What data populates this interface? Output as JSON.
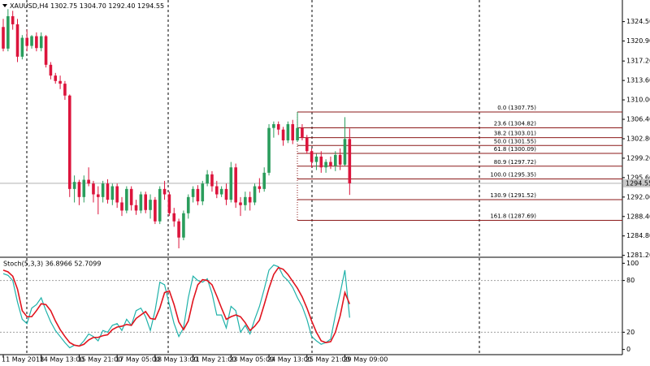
{
  "chart_data": [
    {
      "type": "candlestick",
      "title": "XAUUSD,H4",
      "header_values": [
        "1302.75",
        "1304.70",
        "1292.40",
        "1294.55"
      ],
      "categories": [
        "11 May 2018",
        null,
        null,
        null,
        null,
        null,
        null,
        null,
        "14 May 13:00",
        null,
        null,
        null,
        null,
        null,
        null,
        null,
        "15 May 21:00",
        null,
        null,
        null,
        null,
        null,
        null,
        null,
        "17 May 05:00",
        null,
        null,
        null,
        null,
        null,
        null,
        null,
        "18 May 13:00",
        null,
        null,
        null,
        null,
        null,
        null,
        null,
        "21 May 21:00",
        null,
        null,
        null,
        null,
        null,
        null,
        null,
        "23 May 05:00",
        null,
        null,
        null,
        null,
        null,
        null,
        null,
        "24 May 13:00",
        null,
        null,
        null,
        null,
        null,
        null,
        null,
        "25 May 21:00",
        null,
        null,
        null,
        null,
        null,
        null,
        null,
        "29 May 09:00",
        null
      ],
      "open": [
        1323.5,
        1319.5,
        1325.5,
        1324,
        1318,
        1321.5,
        1320,
        1321.8,
        1319.6,
        1321.8,
        1316.5,
        1314.5,
        1313.5,
        1313,
        1310.8,
        1293.5,
        1294.8,
        1292,
        1295.2,
        1294.5,
        1292.5,
        1292,
        1294.5,
        1291.5,
        1294,
        1291,
        1289.5,
        1293.5,
        1290.5,
        1289.5,
        1292.5,
        1289.6,
        1291.5,
        1287.5,
        1293.5,
        1292.5,
        1289,
        1287.5,
        1284.5,
        1289,
        1292,
        1293.5,
        1291.2,
        1294.5,
        1296.2,
        1294,
        1292.5,
        1293.5,
        1291.5,
        1297.5,
        1291,
        1290.5,
        1292,
        1291,
        1294,
        1293.5,
        1296.5,
        1304.8,
        1305.5,
        1304.5,
        1302.5,
        1305.5,
        1302.5,
        1304.8,
        1303,
        1300.5,
        1298.5,
        1299.5,
        1297.5,
        1298.5,
        1297.8,
        1299.8,
        1298,
        1302.75
      ],
      "high": [
        1325,
        1326.8,
        1326.5,
        1325,
        1322,
        1323,
        1322,
        1322.5,
        1322.5,
        1322,
        1317,
        1315,
        1314.5,
        1313.5,
        1311,
        1296,
        1295.2,
        1296,
        1297.5,
        1295,
        1294,
        1295,
        1295.3,
        1294.5,
        1294.5,
        1292,
        1294,
        1294,
        1291.5,
        1293,
        1293,
        1292.5,
        1292,
        1294,
        1295,
        1293,
        1290,
        1288,
        1289.5,
        1292.5,
        1294,
        1294.2,
        1295,
        1297,
        1296.8,
        1295,
        1294,
        1294.5,
        1298.5,
        1298.2,
        1292,
        1293,
        1293,
        1294.5,
        1295.5,
        1297.5,
        1305.5,
        1306,
        1306,
        1305,
        1306,
        1306.3,
        1307.75,
        1305.5,
        1303.5,
        1301,
        1300,
        1300.5,
        1299,
        1299.5,
        1300.5,
        1301,
        1306.8,
        1304.7
      ],
      "low": [
        1319,
        1319,
        1323,
        1317,
        1317.5,
        1319,
        1319.5,
        1319,
        1319,
        1316,
        1313.8,
        1313,
        1312,
        1310,
        1292,
        1291,
        1290.5,
        1291,
        1294,
        1291,
        1288.8,
        1291,
        1290.8,
        1290.5,
        1290,
        1288.5,
        1289,
        1289.5,
        1288.7,
        1289,
        1289,
        1288,
        1287,
        1287,
        1291.5,
        1288.5,
        1286.5,
        1282.5,
        1284,
        1288,
        1291,
        1290.5,
        1290.5,
        1294,
        1293,
        1291.8,
        1292,
        1290.5,
        1291,
        1290,
        1288.5,
        1289.5,
        1289.5,
        1290.5,
        1292.8,
        1293,
        1296,
        1303,
        1303.5,
        1301.5,
        1302,
        1301.8,
        1302.2,
        1302.5,
        1300,
        1297.5,
        1297,
        1296.5,
        1296.5,
        1297.2,
        1296.8,
        1297,
        1297.8,
        1292.4
      ],
      "close": [
        1319.5,
        1325.5,
        1324,
        1318,
        1321.5,
        1320,
        1321.8,
        1319.6,
        1321.8,
        1316.5,
        1314.5,
        1313.5,
        1313,
        1310.8,
        1293.5,
        1294.8,
        1292,
        1295.2,
        1294.5,
        1292.5,
        1292,
        1294.5,
        1291.5,
        1294,
        1291,
        1289.5,
        1293.5,
        1290.5,
        1289.5,
        1292.5,
        1289.6,
        1291.5,
        1287.5,
        1293.5,
        1292.5,
        1289,
        1287.5,
        1284.5,
        1289,
        1292,
        1293.5,
        1291.2,
        1294.5,
        1296.2,
        1294,
        1292.5,
        1293.5,
        1291.5,
        1297.5,
        1291,
        1290.5,
        1292,
        1291,
        1294,
        1293.5,
        1296.5,
        1304.8,
        1305.5,
        1304.5,
        1302.5,
        1305.5,
        1302.5,
        1304.8,
        1303,
        1300.5,
        1298.5,
        1299.5,
        1297.5,
        1298.5,
        1297.8,
        1299.8,
        1298,
        1302.75,
        1294.55
      ],
      "up_color": "#2a9d5c",
      "down_color": "#dc143c",
      "ylim": [
        1281,
        1328.2
      ],
      "yticks": [
        {
          "value": 1324.5,
          "label": "1324.50"
        },
        {
          "value": 1320.9,
          "label": "1320.90"
        },
        {
          "value": 1317.2,
          "label": "1317.20"
        },
        {
          "value": 1313.6,
          "label": "1313.60"
        },
        {
          "value": 1310,
          "label": "1310.00"
        },
        {
          "value": 1306.4,
          "label": "1306.40"
        },
        {
          "value": 1302.8,
          "label": "1302.80"
        },
        {
          "value": 1299.2,
          "label": "1299.20"
        },
        {
          "value": 1295.6,
          "label": "1295.60"
        },
        {
          "value": 1292,
          "label": "1292.00"
        },
        {
          "value": 1288.4,
          "label": "1288.40"
        },
        {
          "value": 1284.8,
          "label": "1284.80"
        },
        {
          "value": 1281.2,
          "label": "1281.20"
        }
      ],
      "last_price": {
        "value": 1294.55,
        "label": "1294.55"
      },
      "fibonacci": {
        "color": "#8b1a1a",
        "levels": [
          {
            "value": 1307.75,
            "label": "0.0 (1307.75)"
          },
          {
            "value": 1304.82,
            "label": "23.6 (1304.82)"
          },
          {
            "value": 1303.01,
            "label": "38.2 (1303.01)"
          },
          {
            "value": 1301.55,
            "label": "50.0 (1301.55)"
          },
          {
            "value": 1300.09,
            "label": "61.8 (1300.09)"
          },
          {
            "value": 1297.72,
            "label": "80.9 (1297.72)"
          },
          {
            "value": 1295.35,
            "label": "100.0 (1295.35)"
          },
          {
            "value": 1291.52,
            "label": "130.9 (1291.52)"
          },
          {
            "value": 1287.69,
            "label": "161.8 (1287.69)"
          }
        ]
      }
    },
    {
      "type": "line",
      "title": "Stoch(5,3,3) 36.8966 52.7099",
      "series": [
        {
          "color": "#20b2aa",
          "values": [
            88,
            86,
            80,
            55,
            35,
            30,
            48,
            52,
            60,
            45,
            32,
            22,
            15,
            8,
            2,
            5,
            4,
            10,
            18,
            15,
            10,
            22,
            20,
            28,
            30,
            22,
            35,
            28,
            45,
            48,
            38,
            22,
            45,
            78,
            75,
            52,
            30,
            15,
            25,
            60,
            85,
            80,
            78,
            82,
            65,
            40,
            40,
            25,
            50,
            45,
            20,
            28,
            18,
            35,
            50,
            70,
            92,
            98,
            96,
            85,
            80,
            72,
            60,
            50,
            35,
            15,
            10,
            6,
            8,
            12,
            40,
            65,
            92,
            36.8966
          ]
        },
        {
          "color": "#e0141e",
          "values": [
            92,
            90,
            85,
            70,
            45,
            38,
            38,
            45,
            53,
            52,
            45,
            33,
            23,
            15,
            8,
            5,
            4,
            6,
            11,
            14,
            14,
            16,
            17,
            23,
            26,
            27,
            29,
            28,
            36,
            40,
            44,
            36,
            35,
            48,
            66,
            68,
            52,
            32,
            23,
            33,
            57,
            75,
            81,
            80,
            75,
            62,
            48,
            35,
            38,
            40,
            38,
            31,
            22,
            27,
            34,
            52,
            71,
            87,
            95,
            93,
            87,
            79,
            71,
            61,
            48,
            33,
            20,
            10,
            8,
            9,
            20,
            39,
            66,
            52.7099
          ]
        }
      ],
      "ylim": [
        -6,
        106
      ],
      "yticks": [
        0,
        20,
        80,
        100
      ],
      "levels": [
        20,
        80
      ]
    }
  ]
}
